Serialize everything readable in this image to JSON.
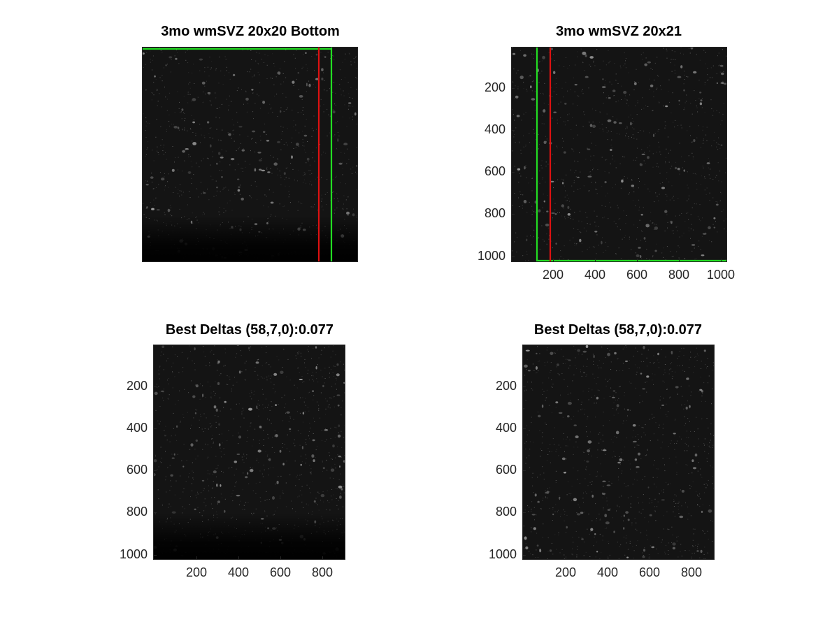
{
  "panels": [
    {
      "title": "3mo wmSVZ 20x20 Bottom",
      "show_ticks": false,
      "yticks": [],
      "xticks": []
    },
    {
      "title": "3mo wmSVZ 20x21",
      "show_ticks": true,
      "yticks": [
        "200",
        "400",
        "600",
        "800",
        "1000"
      ],
      "xticks": [
        "200",
        "400",
        "600",
        "800",
        "1000"
      ]
    },
    {
      "title": "Best Deltas (58,7,0):0.077",
      "show_ticks": true,
      "yticks": [
        "200",
        "400",
        "600",
        "800",
        "1000"
      ],
      "xticks": [
        "200",
        "400",
        "600",
        "800"
      ]
    },
    {
      "title": "Best Deltas (58,7,0):0.077",
      "show_ticks": true,
      "yticks": [
        "200",
        "400",
        "600",
        "800",
        "1000"
      ],
      "xticks": [
        "200",
        "400",
        "600",
        "800"
      ]
    }
  ],
  "colors": {
    "green_line": "#22dd22",
    "red_line": "#dd1111",
    "image_bg": "#141414"
  }
}
